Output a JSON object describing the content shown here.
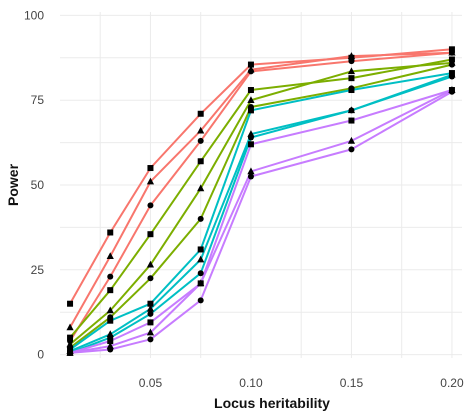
{
  "chart_data": {
    "type": "line",
    "xlabel": "Locus heritability",
    "ylabel": "Power",
    "x": [
      0.01,
      0.03,
      0.05,
      0.075,
      0.1,
      0.15,
      0.2
    ],
    "x_ticks": [
      "0.05",
      "0.10",
      "0.15",
      "0.20"
    ],
    "x_tick_values": [
      0.05,
      0.1,
      0.15,
      0.2
    ],
    "y_ticks": [
      "0",
      "25",
      "50",
      "75",
      "100"
    ],
    "y_tick_values": [
      0,
      25,
      50,
      75,
      100
    ],
    "xlim": [
      0.005,
      0.205
    ],
    "ylim": [
      -1,
      101
    ],
    "grid": true,
    "legend": "none",
    "series": [
      {
        "color": "#f8766d",
        "marker": "square",
        "values": [
          15,
          36,
          55,
          71,
          85.5,
          87.5,
          90
        ]
      },
      {
        "color": "#f8766d",
        "marker": "triangle",
        "values": [
          8,
          29,
          51,
          66,
          84,
          88,
          89
        ]
      },
      {
        "color": "#f8766d",
        "marker": "circle",
        "values": [
          4,
          23,
          44,
          63,
          83.5,
          86.5,
          89
        ]
      },
      {
        "color": "#7cae00",
        "marker": "square",
        "values": [
          5,
          19,
          35.5,
          57,
          78,
          81.5,
          87
        ]
      },
      {
        "color": "#7cae00",
        "marker": "triangle",
        "values": [
          3,
          13,
          26.5,
          49,
          75,
          83.5,
          86
        ]
      },
      {
        "color": "#7cae00",
        "marker": "circle",
        "values": [
          2,
          11,
          22.5,
          40,
          73,
          78.5,
          85.5
        ]
      },
      {
        "color": "#00bfc4",
        "marker": "square",
        "values": [
          1.5,
          10,
          15,
          31,
          72,
          78,
          83
        ]
      },
      {
        "color": "#00bfc4",
        "marker": "triangle",
        "values": [
          1,
          6,
          13.5,
          28,
          65,
          72,
          82.5
        ]
      },
      {
        "color": "#00bfc4",
        "marker": "circle",
        "values": [
          0.5,
          5,
          12,
          24,
          64,
          72,
          82
        ]
      },
      {
        "color": "#c77cff",
        "marker": "square",
        "values": [
          0.5,
          4,
          9.5,
          21,
          62,
          69,
          78
        ]
      },
      {
        "color": "#c77cff",
        "marker": "triangle",
        "values": [
          0.5,
          2.5,
          6.5,
          21,
          54,
          63,
          78
        ]
      },
      {
        "color": "#c77cff",
        "marker": "circle",
        "values": [
          0.5,
          1.5,
          4.5,
          16,
          52.5,
          60.5,
          77.5
        ]
      }
    ]
  }
}
